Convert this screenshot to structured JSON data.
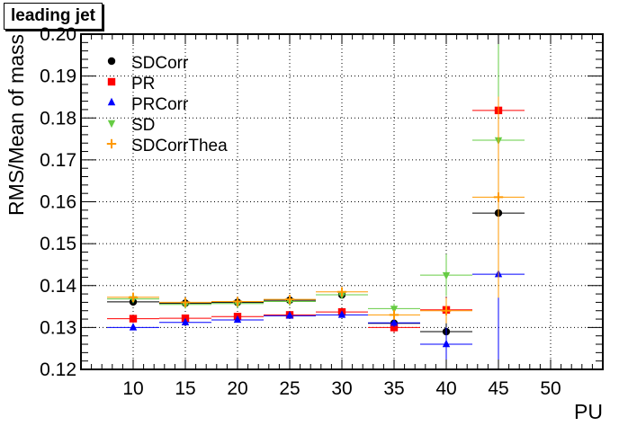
{
  "chart_data": {
    "type": "scatter",
    "title": "leading jet",
    "xlabel": "PU",
    "ylabel": "RMS/Mean of mass",
    "xlim": [
      5,
      55
    ],
    "ylim": [
      0.12,
      0.2
    ],
    "grid": true,
    "legend_position": "top-left",
    "x_ticks": [
      10,
      15,
      20,
      25,
      30,
      35,
      40,
      45,
      50
    ],
    "y_ticks": [
      0.12,
      0.13,
      0.14,
      0.15,
      0.16,
      0.17,
      0.18,
      0.19,
      0.2
    ],
    "x_tick_labels": [
      "10",
      "15",
      "20",
      "25",
      "30",
      "35",
      "40",
      "45",
      "50"
    ],
    "y_tick_labels": [
      "0.12",
      "0.13",
      "0.14",
      "0.15",
      "0.16",
      "0.17",
      "0.18",
      "0.19",
      "0.20"
    ],
    "series": [
      {
        "name": "SDCorr",
        "color": "#000000",
        "marker": "circle",
        "points": [
          {
            "x": 10,
            "y": 0.1361,
            "xerr": 2.5,
            "yerr": 0.0005
          },
          {
            "x": 15,
            "y": 0.1358,
            "xerr": 2.5,
            "yerr": 0.0005
          },
          {
            "x": 20,
            "y": 0.136,
            "xerr": 2.5,
            "yerr": 0.0005
          },
          {
            "x": 25,
            "y": 0.1365,
            "xerr": 2.5,
            "yerr": 0.0006
          },
          {
            "x": 30,
            "y": 0.1378,
            "xerr": 2.5,
            "yerr": 0.0008
          },
          {
            "x": 35,
            "y": 0.131,
            "xerr": 2.5,
            "yerr": 0.0012
          },
          {
            "x": 40,
            "y": 0.129,
            "xerr": 2.5,
            "yerr": 0.003
          },
          {
            "x": 45,
            "y": 0.1573,
            "xerr": 2.5,
            "yerr": 0.024
          }
        ]
      },
      {
        "name": "PR",
        "color": "#ff0000",
        "marker": "square",
        "points": [
          {
            "x": 10,
            "y": 0.1321,
            "xerr": 2.5,
            "yerr": 0.0005
          },
          {
            "x": 15,
            "y": 0.1322,
            "xerr": 2.5,
            "yerr": 0.0005
          },
          {
            "x": 20,
            "y": 0.1326,
            "xerr": 2.5,
            "yerr": 0.0005
          },
          {
            "x": 25,
            "y": 0.133,
            "xerr": 2.5,
            "yerr": 0.0006
          },
          {
            "x": 30,
            "y": 0.1337,
            "xerr": 2.5,
            "yerr": 0.0008
          },
          {
            "x": 35,
            "y": 0.13,
            "xerr": 2.5,
            "yerr": 0.0012
          },
          {
            "x": 40,
            "y": 0.1342,
            "xerr": 2.5,
            "yerr": 0.003
          },
          {
            "x": 45,
            "y": 0.1818,
            "xerr": 2.5,
            "yerr": 0.024
          }
        ]
      },
      {
        "name": "PRCorr",
        "color": "#0000ff",
        "marker": "triangle-up",
        "points": [
          {
            "x": 10,
            "y": 0.13,
            "xerr": 2.5,
            "yerr": 0.0004
          },
          {
            "x": 15,
            "y": 0.1312,
            "xerr": 2.5,
            "yerr": 0.0004
          },
          {
            "x": 20,
            "y": 0.1318,
            "xerr": 2.5,
            "yerr": 0.0004
          },
          {
            "x": 25,
            "y": 0.1328,
            "xerr": 2.5,
            "yerr": 0.0005
          },
          {
            "x": 30,
            "y": 0.133,
            "xerr": 2.5,
            "yerr": 0.0006
          },
          {
            "x": 35,
            "y": 0.1311,
            "xerr": 2.5,
            "yerr": 0.001
          },
          {
            "x": 40,
            "y": 0.126,
            "xerr": 2.5,
            "yerr": 0.004
          },
          {
            "x": 45,
            "y": 0.1427,
            "xerr": 2.5,
            "yerr": 0.021
          }
        ]
      },
      {
        "name": "SD",
        "color": "#66cc44",
        "marker": "triangle-down",
        "points": [
          {
            "x": 10,
            "y": 0.1368,
            "xerr": 2.5,
            "yerr": 0.0005
          },
          {
            "x": 15,
            "y": 0.1355,
            "xerr": 2.5,
            "yerr": 0.0005
          },
          {
            "x": 20,
            "y": 0.1357,
            "xerr": 2.5,
            "yerr": 0.0005
          },
          {
            "x": 25,
            "y": 0.1362,
            "xerr": 2.5,
            "yerr": 0.0006
          },
          {
            "x": 30,
            "y": 0.1378,
            "xerr": 2.5,
            "yerr": 0.0008
          },
          {
            "x": 35,
            "y": 0.1345,
            "xerr": 2.5,
            "yerr": 0.0012
          },
          {
            "x": 40,
            "y": 0.1425,
            "xerr": 2.5,
            "yerr": 0.005
          },
          {
            "x": 45,
            "y": 0.1747,
            "xerr": 2.5,
            "yerr": 0.026
          }
        ]
      },
      {
        "name": "SDCorrThea",
        "color": "#ff9900",
        "marker": "plus",
        "points": [
          {
            "x": 10,
            "y": 0.1372,
            "xerr": 2.5,
            "yerr": 0.0005
          },
          {
            "x": 15,
            "y": 0.136,
            "xerr": 2.5,
            "yerr": 0.0005
          },
          {
            "x": 20,
            "y": 0.1362,
            "xerr": 2.5,
            "yerr": 0.0005
          },
          {
            "x": 25,
            "y": 0.1367,
            "xerr": 2.5,
            "yerr": 0.0006
          },
          {
            "x": 30,
            "y": 0.1385,
            "xerr": 2.5,
            "yerr": 0.0008
          },
          {
            "x": 35,
            "y": 0.133,
            "xerr": 2.5,
            "yerr": 0.0012
          },
          {
            "x": 40,
            "y": 0.134,
            "xerr": 2.5,
            "yerr": 0.003
          },
          {
            "x": 45,
            "y": 0.1611,
            "xerr": 2.5,
            "yerr": 0.024
          }
        ]
      }
    ]
  }
}
